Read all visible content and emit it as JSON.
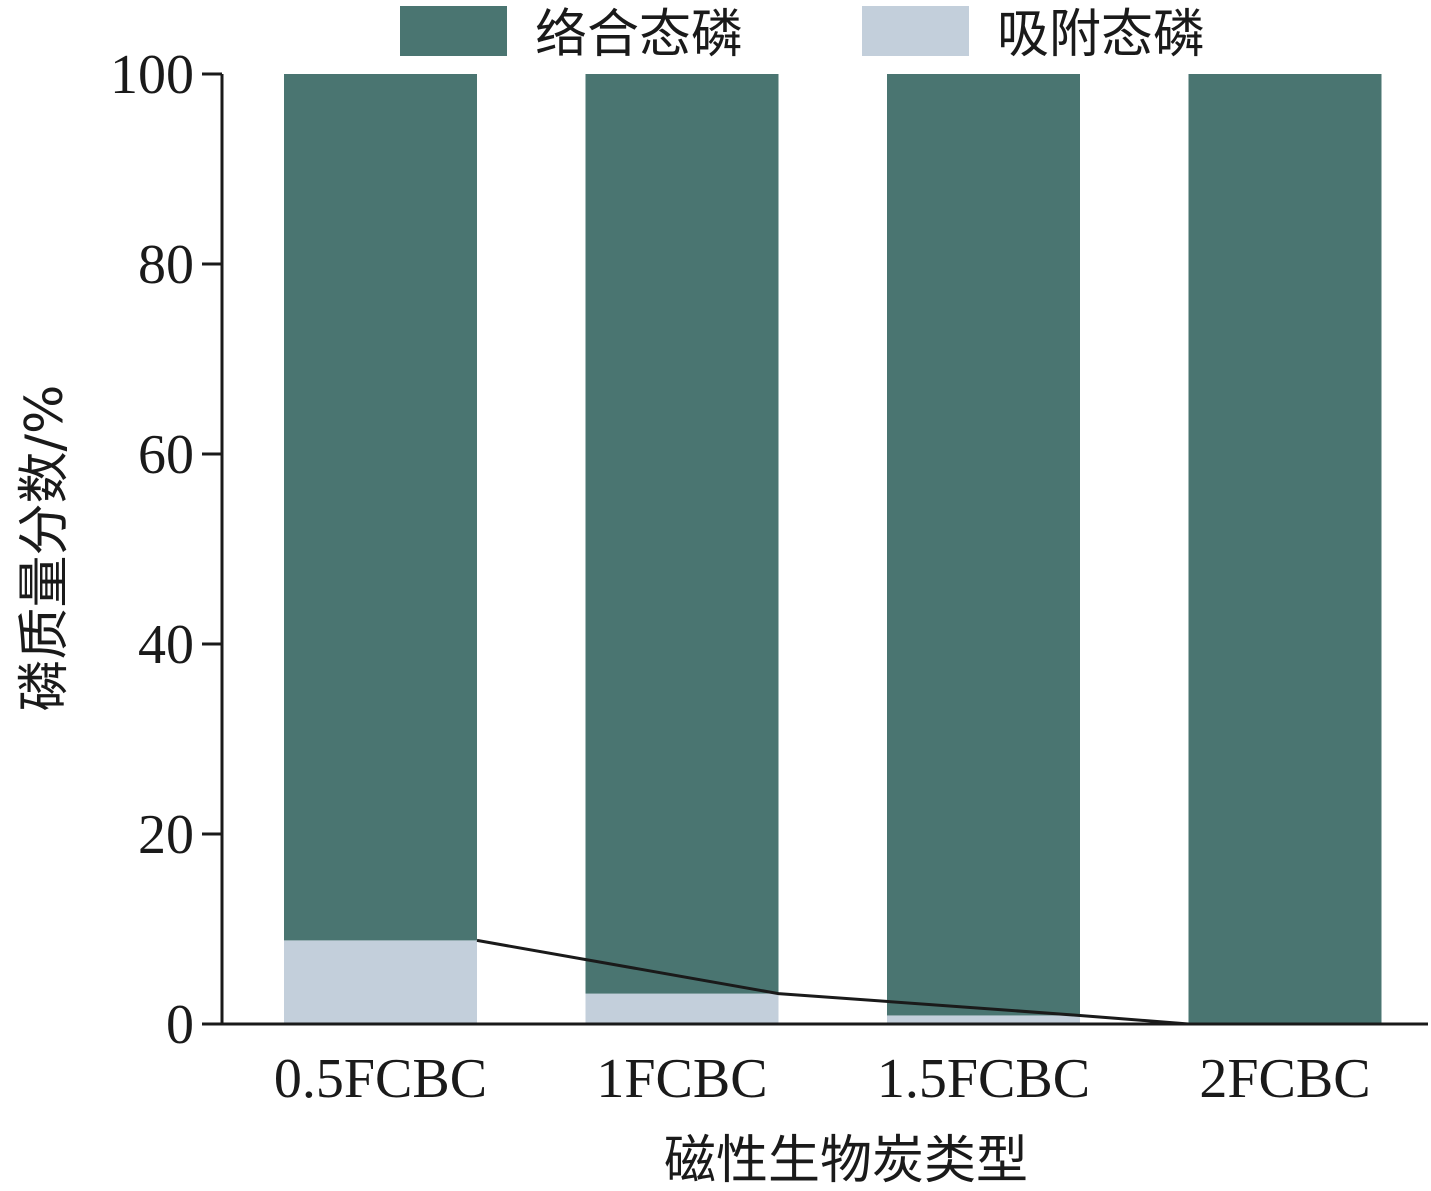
{
  "chart_data": {
    "type": "bar",
    "stacked": true,
    "categories": [
      "0.5FCBC",
      "1FCBC",
      "1.5FCBC",
      "2FCBC"
    ],
    "series": [
      {
        "name": "吸附态磷",
        "color": "#c3cfdb",
        "values": [
          8.8,
          3.2,
          0.9,
          0.0
        ]
      },
      {
        "name": "络合态磷",
        "color": "#4a7571",
        "values": [
          91.2,
          96.8,
          99.1,
          100.0
        ]
      }
    ],
    "trend_line": {
      "series": "吸附态磷",
      "color": "#1a1a1a"
    },
    "xlabel": "磁性生物炭类型",
    "ylabel": "磷质量分数/%",
    "ylim": [
      0,
      100
    ],
    "yticks": [
      0,
      20,
      40,
      60,
      80,
      100
    ],
    "grid": false,
    "legend_position": "top"
  }
}
